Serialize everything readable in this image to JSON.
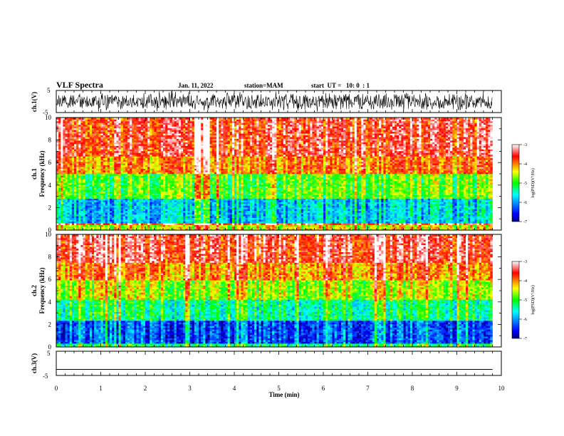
{
  "header": {
    "title": "VLF Spectra",
    "date": "Jan. 11, 2022",
    "station": "station=MAM",
    "start": "start  UT =   10: 0  : 1"
  },
  "chart_data": [
    {
      "type": "line",
      "name": "waveform-ch1",
      "ylabel": "ch.1(V)",
      "ylim": [
        -5,
        5
      ],
      "ytick_labels": [
        "5",
        "-5"
      ],
      "xlim": [
        0,
        10
      ],
      "signal": "dense noisy waveform spanning roughly -5 to 5 V throughout 0 to 9.8 min"
    },
    {
      "type": "heatmap",
      "name": "spectrogram-ch1",
      "ylabel_line1": "ch.1",
      "ylabel_line2": "Frequency (kHz)",
      "ylim": [
        0,
        10
      ],
      "yticks": [
        "0",
        "2",
        "4",
        "6",
        "8",
        "10"
      ],
      "xlim": [
        0,
        10
      ],
      "data_xmax": 9.8,
      "colorbar": {
        "label": "log(PSD)(V²/Hz)",
        "range": [
          -7,
          -3
        ],
        "ticks": [
          "-3",
          "-4",
          "-5",
          "-6",
          "-7"
        ],
        "colors": [
          "#000080",
          "#0000ff",
          "#00ffff",
          "#00ff00",
          "#ffff00",
          "#ff0000",
          "#ffffff"
        ]
      },
      "bands": [
        {
          "freq_khz": [
            0,
            0.4
          ],
          "level": -4.5
        },
        {
          "freq_khz": [
            0.4,
            0.7
          ],
          "level": -3.5
        },
        {
          "freq_khz": [
            0.7,
            2.8
          ],
          "level": -5.8
        },
        {
          "freq_khz": [
            2.8,
            5.0
          ],
          "level": -4.9
        },
        {
          "freq_khz": [
            5.0,
            6.5
          ],
          "level": -4.0
        },
        {
          "freq_khz": [
            6.5,
            10.0
          ],
          "level": -3.6
        }
      ]
    },
    {
      "type": "heatmap",
      "name": "spectrogram-ch2",
      "ylabel_line1": "ch.2",
      "ylabel_line2": "Frequency (kHz)",
      "ylim": [
        0,
        10
      ],
      "yticks": [
        "0",
        "2",
        "4",
        "6",
        "8",
        "10"
      ],
      "xlim": [
        0,
        10
      ],
      "data_xmax": 9.8,
      "colorbar": {
        "label": "log(PSD)(V²/Hz)",
        "range": [
          -7,
          -3
        ],
        "ticks": [
          "-3",
          "-4",
          "-5",
          "-6",
          "-7"
        ],
        "colors": [
          "#000080",
          "#0000ff",
          "#00ffff",
          "#00ff00",
          "#ffff00",
          "#ff0000",
          "#ffffff"
        ]
      },
      "bands": [
        {
          "freq_khz": [
            0,
            0.3
          ],
          "level": -5.2
        },
        {
          "freq_khz": [
            0.3,
            2.3
          ],
          "level": -6.3
        },
        {
          "freq_khz": [
            2.3,
            4.2
          ],
          "level": -5.3
        },
        {
          "freq_khz": [
            4.2,
            6.0
          ],
          "level": -4.6
        },
        {
          "freq_khz": [
            6.0,
            7.5
          ],
          "level": -4.0
        },
        {
          "freq_khz": [
            7.5,
            10.0
          ],
          "level": -3.5
        }
      ]
    },
    {
      "type": "line",
      "name": "waveform-ch3",
      "ylabel": "ch.3(V)",
      "ylim": [
        -5,
        5
      ],
      "ytick_labels": [
        "5",
        "-5"
      ],
      "xlim": [
        0,
        10
      ],
      "flat_value": -2.5,
      "xlabel": "Time (min)",
      "xticks": [
        "0",
        "1",
        "2",
        "3",
        "4",
        "5",
        "6",
        "7",
        "8",
        "9",
        "10"
      ]
    }
  ]
}
